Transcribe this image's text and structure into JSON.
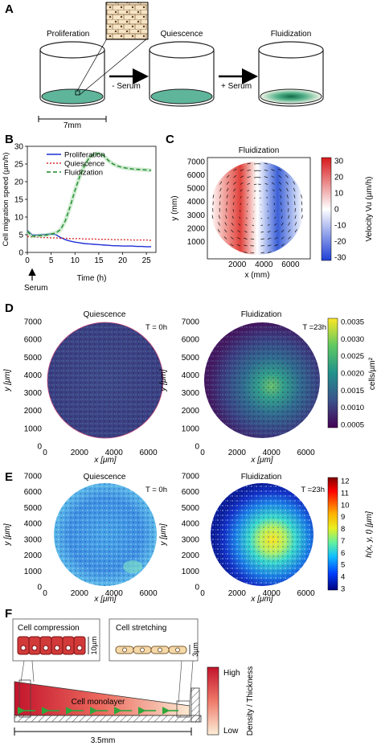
{
  "panel_a": {
    "letter": "A",
    "stage1": "Proliferation",
    "stage2": "Quiescence",
    "stage3": "Fluidization",
    "arrow1": "- Serum",
    "arrow2": "+ Serum",
    "scale": "7mm"
  },
  "panel_b": {
    "letter": "B",
    "ylabel": "Cell migration speed (µm/h)",
    "xlabel": "Time (h)",
    "serum": "Serum"
  },
  "panel_c": {
    "letter": "C",
    "title": "Fluidization",
    "xlabel": "x (mm)",
    "ylabel": "y (mm)",
    "cbar_label": "Velocity Vu (µm/h)",
    "cbar_ticks": [
      "30",
      "20",
      "10",
      "0",
      "-10",
      "-20",
      "-30"
    ]
  },
  "panel_d": {
    "letter": "D",
    "left_title": "Quiescence",
    "right_title": "Fluidization",
    "left_time": "T = 0h",
    "right_time": "T =23h",
    "xlabel": "x [μm]",
    "ylabel": "y [μm]",
    "cbar_label": "cells/µm²",
    "cbar_ticks": [
      "0.0035",
      "0.0030",
      "0.0025",
      "0.0020",
      "0.0015",
      "0.0010",
      "0.0005"
    ]
  },
  "panel_e": {
    "letter": "E",
    "left_title": "Quiescence",
    "right_title": "Fluidization",
    "left_time": "T = 0h",
    "right_time": "T =23h",
    "xlabel": "x [μm]",
    "ylabel": "y [μm]",
    "cbar_label": "h(x, y, t) [μm]",
    "cbar_ticks": [
      "12",
      "11",
      "10",
      "9",
      "8",
      "7",
      "6",
      "5",
      "4",
      "3"
    ]
  },
  "panel_f": {
    "letter": "F",
    "compression": "Cell compression",
    "stretching": "Cell stretching",
    "height_left": "10µm",
    "height_right": "3µm",
    "monolayer": "Cell monolayer",
    "scale": "3.5mm",
    "cbar_high": "High",
    "cbar_low": "Low",
    "cbar_label": "Density / Thickness"
  },
  "map_axes": {
    "x_ticks": [
      "0",
      "2000",
      "4000",
      "6000"
    ],
    "y_ticks": [
      "0",
      "1000",
      "2000",
      "3000",
      "4000",
      "5000",
      "6000",
      "7000"
    ]
  },
  "chart_data": {
    "type": "line",
    "x": [
      0,
      1,
      2,
      3,
      4,
      5,
      6,
      7,
      8,
      9,
      10,
      11,
      12,
      13,
      14,
      15,
      16,
      17,
      18,
      19,
      20,
      21,
      22,
      23,
      24,
      25,
      26
    ],
    "series": [
      {
        "name": "Proliferation",
        "color": "#1f2fd6",
        "values": [
          6.2,
          5.0,
          4.9,
          5.0,
          5.1,
          5.2,
          5.0,
          4.2,
          3.6,
          3.2,
          2.9,
          2.7,
          2.5,
          2.4,
          2.3,
          2.2,
          2.1,
          2.0,
          1.9,
          1.9,
          1.8,
          1.8,
          1.8,
          1.7,
          1.7,
          1.6,
          1.6
        ]
      },
      {
        "name": "Quiescence",
        "color": "#d63030",
        "values": [
          4.5,
          4.4,
          4.3,
          4.2,
          4.2,
          4.1,
          4.1,
          4.0,
          4.0,
          3.9,
          3.9,
          3.9,
          3.8,
          3.8,
          3.8,
          3.7,
          3.7,
          3.7,
          3.6,
          3.6,
          3.6,
          3.6,
          3.5,
          3.5,
          3.5,
          3.5,
          3.4
        ]
      },
      {
        "name": "Fluidization",
        "color": "#1e8a2a",
        "values": [
          6.0,
          4.6,
          4.7,
          4.8,
          4.9,
          5.2,
          5.5,
          6.5,
          9.0,
          13.0,
          17.5,
          21.5,
          24.5,
          26.8,
          27.8,
          28.0,
          27.4,
          26.0,
          25.0,
          24.4,
          24.0,
          23.8,
          23.6,
          23.5,
          23.4,
          23.3,
          23.2
        ]
      }
    ],
    "xlim": [
      0,
      27
    ],
    "ylim": [
      0,
      30
    ],
    "x_ticks": [
      0,
      5,
      10,
      15,
      20,
      25
    ],
    "y_ticks": [
      0,
      5,
      10,
      15,
      20,
      25,
      30
    ],
    "legend": "top-left"
  }
}
